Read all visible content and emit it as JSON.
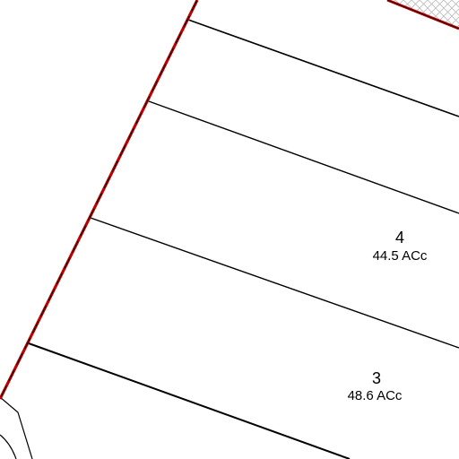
{
  "colors": {
    "background": "#ffffff",
    "lot_line": "#000000",
    "boundary": "#c00000",
    "hatch": "#bbbbbb"
  },
  "parcels": [
    {
      "number": "4",
      "area": "44.5 ACc"
    },
    {
      "number": "3",
      "area": "48.6 ACc"
    }
  ]
}
